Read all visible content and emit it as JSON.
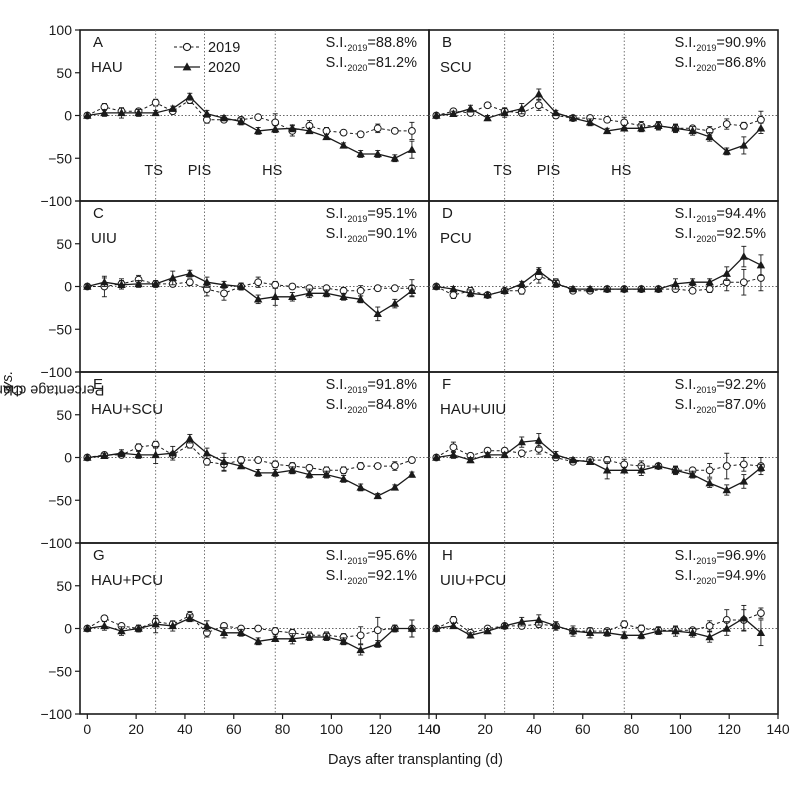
{
  "figure": {
    "ylabel_pre": "Percentage change of NBI value ",
    "ylabel_it": "vs.",
    "ylabel_post": " CK (%)",
    "xlabel": "Days after transplanting (d)",
    "legend": [
      {
        "label": "2019",
        "marker": "open-circle",
        "line": "dashed"
      },
      {
        "label": "2020",
        "marker": "filled-triangle",
        "line": "solid"
      }
    ],
    "colors": {
      "axis": "#1a1a1a",
      "series": "#1a1a1a",
      "reference": "#666666"
    }
  },
  "chart_data": [
    {
      "type": "line",
      "letter": "A",
      "treatment": "HAU",
      "si_2019": "=88.8%",
      "si_2020": "=81.2%",
      "stage_labels": [
        "TS",
        "PIS",
        "HS"
      ],
      "x": [
        0,
        7,
        14,
        21,
        28,
        35,
        42,
        49,
        56,
        63,
        70,
        77,
        84,
        91,
        98,
        105,
        112,
        119,
        126,
        133
      ],
      "series": [
        {
          "name": "2019",
          "values": [
            0,
            10,
            5,
            5,
            15,
            5,
            18,
            -5,
            -5,
            -5,
            -2,
            -8,
            -18,
            -12,
            -18,
            -20,
            -22,
            -15,
            -18,
            -18
          ],
          "errors": [
            3,
            4,
            4,
            3,
            4,
            3,
            4,
            4,
            3,
            3,
            3,
            10,
            6,
            6,
            4,
            3,
            3,
            5,
            3,
            10
          ]
        },
        {
          "name": "2020",
          "values": [
            0,
            3,
            3,
            3,
            3,
            8,
            22,
            2,
            -3,
            -7,
            -18,
            -16,
            -15,
            -18,
            -25,
            -35,
            -45,
            -45,
            -50,
            -40
          ],
          "errors": [
            3,
            4,
            6,
            4,
            3,
            3,
            4,
            4,
            3,
            4,
            4,
            4,
            4,
            3,
            3,
            3,
            4,
            4,
            4,
            10
          ]
        }
      ],
      "stage_x": [
        28,
        48,
        77
      ],
      "xlabel": "Days after transplanting (d)",
      "ylim": [
        -100,
        100
      ],
      "xlim": [
        -3,
        140
      ]
    },
    {
      "type": "line",
      "letter": "B",
      "treatment": "SCU",
      "si_2019": "=90.9%",
      "si_2020": "=86.8%",
      "stage_labels": [
        "TS",
        "PIS",
        "HS"
      ],
      "x": [
        0,
        7,
        14,
        21,
        28,
        35,
        42,
        49,
        56,
        63,
        70,
        77,
        84,
        91,
        98,
        105,
        112,
        119,
        126,
        133
      ],
      "series": [
        {
          "name": "2019",
          "values": [
            0,
            5,
            3,
            12,
            5,
            3,
            12,
            0,
            -3,
            -3,
            -5,
            -8,
            -12,
            -12,
            -15,
            -15,
            -18,
            -10,
            -12,
            -5
          ],
          "errors": [
            3,
            3,
            3,
            3,
            4,
            3,
            6,
            3,
            3,
            3,
            3,
            6,
            5,
            4,
            4,
            3,
            5,
            6,
            4,
            10
          ]
        },
        {
          "name": "2020",
          "values": [
            0,
            2,
            8,
            -3,
            3,
            8,
            25,
            3,
            -3,
            -8,
            -18,
            -15,
            -15,
            -12,
            -15,
            -18,
            -25,
            -42,
            -35,
            -15
          ],
          "errors": [
            3,
            3,
            4,
            3,
            5,
            6,
            6,
            3,
            3,
            4,
            3,
            3,
            4,
            5,
            5,
            5,
            5,
            4,
            10,
            6
          ]
        }
      ],
      "stage_x": [
        28,
        48,
        77
      ],
      "xlabel": "Days after transplanting (d)",
      "ylim": [
        -100,
        100
      ],
      "xlim": [
        -3,
        140
      ]
    },
    {
      "type": "line",
      "letter": "C",
      "treatment": "UIU",
      "si_2019": "=95.1%",
      "si_2020": "=90.1%",
      "stage_labels": [],
      "x": [
        0,
        7,
        14,
        21,
        28,
        35,
        42,
        49,
        56,
        63,
        70,
        77,
        84,
        91,
        98,
        105,
        112,
        119,
        126,
        133
      ],
      "series": [
        {
          "name": "2019",
          "values": [
            0,
            0,
            3,
            8,
            3,
            3,
            5,
            -3,
            -8,
            0,
            5,
            2,
            0,
            -2,
            -2,
            -5,
            -5,
            -2,
            -2,
            -2
          ],
          "errors": [
            2,
            12,
            6,
            5,
            3,
            3,
            4,
            8,
            8,
            4,
            6,
            4,
            3,
            3,
            3,
            4,
            6,
            3,
            3,
            10
          ]
        },
        {
          "name": "2020",
          "values": [
            0,
            5,
            2,
            3,
            3,
            10,
            15,
            5,
            2,
            0,
            -15,
            -12,
            -12,
            -8,
            -8,
            -12,
            -15,
            -32,
            -20,
            -5
          ],
          "errors": [
            2,
            5,
            5,
            4,
            4,
            8,
            4,
            6,
            4,
            4,
            5,
            10,
            5,
            5,
            4,
            4,
            4,
            8,
            5,
            6
          ]
        }
      ],
      "stage_x": [
        28,
        48,
        77
      ],
      "xlabel": "Days after transplanting (d)",
      "ylim": [
        -100,
        100
      ],
      "xlim": [
        -3,
        140
      ]
    },
    {
      "type": "line",
      "letter": "D",
      "treatment": "PCU",
      "si_2019": "=94.4%",
      "si_2020": "=92.5%",
      "stage_labels": [],
      "x": [
        0,
        7,
        14,
        21,
        28,
        35,
        42,
        49,
        56,
        63,
        70,
        77,
        84,
        91,
        98,
        105,
        112,
        119,
        126,
        133
      ],
      "series": [
        {
          "name": "2019",
          "values": [
            0,
            -10,
            -5,
            -10,
            -5,
            -5,
            12,
            5,
            -5,
            -5,
            -3,
            -3,
            -3,
            -3,
            -3,
            -5,
            -3,
            5,
            5,
            10
          ],
          "errors": [
            2,
            4,
            4,
            3,
            3,
            4,
            8,
            4,
            3,
            3,
            3,
            3,
            3,
            3,
            3,
            3,
            4,
            10,
            15,
            15
          ]
        },
        {
          "name": "2020",
          "values": [
            0,
            -3,
            -8,
            -10,
            -5,
            3,
            18,
            3,
            -3,
            -3,
            -3,
            -3,
            -3,
            -3,
            3,
            5,
            5,
            15,
            35,
            25
          ],
          "errors": [
            2,
            3,
            4,
            3,
            3,
            3,
            4,
            4,
            3,
            3,
            3,
            3,
            3,
            3,
            6,
            4,
            4,
            8,
            12,
            12
          ]
        }
      ],
      "stage_x": [
        28,
        48,
        77
      ],
      "xlabel": "Days after transplanting (d)",
      "ylim": [
        -100,
        100
      ],
      "xlim": [
        -3,
        140
      ]
    },
    {
      "type": "line",
      "letter": "E",
      "treatment": "HAU+SCU",
      "si_2019": "=91.8%",
      "si_2020": "=84.8%",
      "stage_labels": [],
      "x": [
        0,
        7,
        14,
        21,
        28,
        35,
        42,
        49,
        56,
        63,
        70,
        77,
        84,
        91,
        98,
        105,
        112,
        119,
        126,
        133
      ],
      "series": [
        {
          "name": "2019",
          "values": [
            0,
            3,
            3,
            12,
            15,
            3,
            15,
            -5,
            -8,
            -3,
            -3,
            -8,
            -10,
            -12,
            -15,
            -15,
            -10,
            -10,
            -10,
            -3
          ],
          "errors": [
            3,
            3,
            3,
            4,
            4,
            3,
            4,
            4,
            8,
            4,
            3,
            4,
            4,
            3,
            4,
            4,
            4,
            3,
            5,
            3
          ]
        },
        {
          "name": "2020",
          "values": [
            0,
            2,
            5,
            3,
            3,
            5,
            22,
            5,
            -5,
            -10,
            -18,
            -18,
            -15,
            -20,
            -20,
            -25,
            -35,
            -45,
            -35,
            -20
          ],
          "errors": [
            3,
            3,
            4,
            4,
            10,
            8,
            5,
            6,
            10,
            3,
            4,
            4,
            4,
            4,
            4,
            4,
            4,
            3,
            3,
            3
          ]
        }
      ],
      "stage_x": [
        28,
        48,
        77
      ],
      "xlabel": "Days after transplanting (d)",
      "ylim": [
        -100,
        100
      ],
      "xlim": [
        -3,
        140
      ]
    },
    {
      "type": "line",
      "letter": "F",
      "treatment": "HAU+UIU",
      "si_2019": "=92.2%",
      "si_2020": "=87.0%",
      "stage_labels": [],
      "x": [
        0,
        7,
        14,
        21,
        28,
        35,
        42,
        49,
        56,
        63,
        70,
        77,
        84,
        91,
        98,
        105,
        112,
        119,
        126,
        133
      ],
      "series": [
        {
          "name": "2019",
          "values": [
            0,
            12,
            2,
            8,
            8,
            5,
            10,
            0,
            -5,
            -3,
            -3,
            -8,
            -10,
            -10,
            -15,
            -15,
            -15,
            -10,
            -8,
            -10
          ],
          "errors": [
            3,
            6,
            3,
            3,
            3,
            3,
            6,
            3,
            3,
            3,
            4,
            6,
            6,
            3,
            5,
            3,
            8,
            15,
            8,
            10
          ]
        },
        {
          "name": "2020",
          "values": [
            0,
            3,
            -3,
            3,
            3,
            18,
            20,
            3,
            -3,
            -5,
            -15,
            -15,
            -15,
            -10,
            -15,
            -20,
            -30,
            -38,
            -28,
            -12
          ],
          "errors": [
            3,
            4,
            3,
            3,
            3,
            6,
            8,
            4,
            3,
            3,
            10,
            3,
            6,
            3,
            4,
            4,
            5,
            6,
            8,
            4
          ]
        }
      ],
      "stage_x": [
        28,
        48,
        77
      ],
      "xlabel": "Days after transplanting (d)",
      "ylim": [
        -100,
        100
      ],
      "xlim": [
        -3,
        140
      ]
    },
    {
      "type": "line",
      "letter": "G",
      "treatment": "HAU+PCU",
      "si_2019": "=95.6%",
      "si_2020": "=92.1%",
      "stage_labels": [],
      "x": [
        0,
        7,
        14,
        21,
        28,
        35,
        42,
        49,
        56,
        63,
        70,
        77,
        84,
        91,
        98,
        105,
        112,
        119,
        126,
        133
      ],
      "series": [
        {
          "name": "2019",
          "values": [
            0,
            12,
            3,
            0,
            8,
            5,
            15,
            -5,
            3,
            0,
            0,
            -3,
            -5,
            -8,
            -8,
            -10,
            -8,
            -2,
            0,
            0
          ],
          "errors": [
            3,
            3,
            3,
            3,
            4,
            3,
            5,
            5,
            3,
            3,
            3,
            4,
            4,
            4,
            4,
            4,
            10,
            15,
            3,
            10
          ]
        },
        {
          "name": "2020",
          "values": [
            0,
            3,
            -3,
            0,
            5,
            3,
            12,
            3,
            -5,
            -5,
            -15,
            -12,
            -12,
            -10,
            -10,
            -15,
            -25,
            -18,
            0,
            0
          ],
          "errors": [
            3,
            5,
            5,
            4,
            10,
            6,
            4,
            6,
            6,
            4,
            4,
            3,
            6,
            4,
            4,
            4,
            6,
            4,
            4,
            10
          ]
        }
      ],
      "stage_x": [
        28,
        48,
        77
      ],
      "xlabel": "Days after transplanting (d)",
      "ylim": [
        -100,
        100
      ],
      "xlim": [
        -3,
        140
      ]
    },
    {
      "type": "line",
      "letter": "H",
      "treatment": "UIU+PCU",
      "si_2019": "=96.9%",
      "si_2020": "=94.9%",
      "stage_labels": [],
      "x": [
        0,
        7,
        14,
        21,
        28,
        35,
        42,
        49,
        56,
        63,
        70,
        77,
        84,
        91,
        98,
        105,
        112,
        119,
        126,
        133
      ],
      "series": [
        {
          "name": "2019",
          "values": [
            0,
            10,
            -5,
            0,
            3,
            3,
            5,
            3,
            -3,
            -3,
            -3,
            5,
            0,
            -2,
            -2,
            -2,
            3,
            10,
            10,
            18
          ],
          "errors": [
            3,
            4,
            3,
            3,
            3,
            3,
            4,
            3,
            3,
            3,
            3,
            4,
            4,
            4,
            4,
            3,
            6,
            12,
            12,
            6
          ]
        },
        {
          "name": "2020",
          "values": [
            0,
            3,
            -8,
            -3,
            3,
            8,
            10,
            3,
            -3,
            -5,
            -5,
            -8,
            -8,
            -3,
            -3,
            -5,
            -10,
            0,
            12,
            -5
          ],
          "errors": [
            3,
            3,
            3,
            3,
            3,
            5,
            6,
            5,
            6,
            6,
            4,
            4,
            4,
            4,
            6,
            5,
            6,
            8,
            15,
            15
          ]
        }
      ],
      "stage_x": [
        28,
        48,
        77
      ],
      "xlabel": "Days after transplanting (d)",
      "ylim": [
        -100,
        100
      ],
      "xlim": [
        -3,
        140
      ]
    }
  ]
}
